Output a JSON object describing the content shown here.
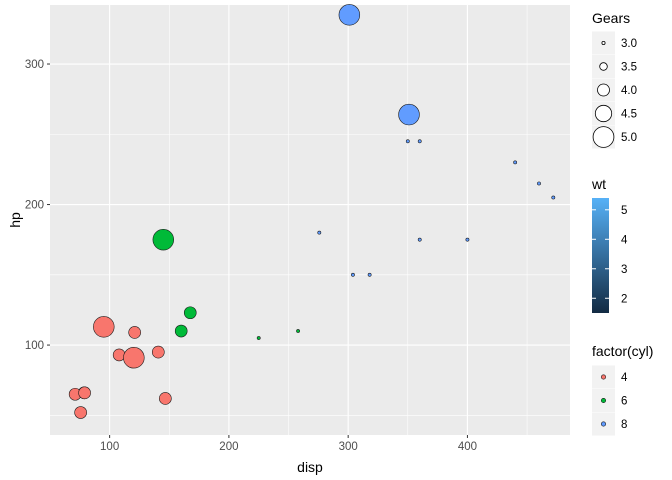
{
  "chart_data": {
    "type": "scatter",
    "xlabel": "disp",
    "ylabel": "hp",
    "xlim": [
      50,
      486
    ],
    "ylim": [
      36,
      342
    ],
    "x_ticks": [
      100,
      200,
      300,
      400
    ],
    "y_ticks": [
      100,
      200,
      300
    ],
    "x_tick_labels": [
      "100",
      "200",
      "300",
      "400"
    ],
    "y_tick_labels": [
      "100",
      "200",
      "300"
    ],
    "grid": true,
    "background": "#ebebeb",
    "size_variable": "Gears",
    "fill_variable": "factor(cyl)",
    "color_variable": "wt",
    "series": [
      {
        "name": "4",
        "color": "#f8766d",
        "points": [
          {
            "x": 108,
            "y": 93,
            "gear": 4
          },
          {
            "x": 146.7,
            "y": 62,
            "gear": 4
          },
          {
            "x": 140.8,
            "y": 95,
            "gear": 4
          },
          {
            "x": 78.7,
            "y": 66,
            "gear": 4
          },
          {
            "x": 75.7,
            "y": 52,
            "gear": 4
          },
          {
            "x": 71.1,
            "y": 65,
            "gear": 4
          },
          {
            "x": 120.1,
            "y": 97,
            "gear": 3
          },
          {
            "x": 79,
            "y": 66,
            "gear": 4
          },
          {
            "x": 120.3,
            "y": 91,
            "gear": 5
          },
          {
            "x": 95.1,
            "y": 113,
            "gear": 5
          },
          {
            "x": 121,
            "y": 109,
            "gear": 4
          }
        ]
      },
      {
        "name": "6",
        "color": "#00ba38",
        "points": [
          {
            "x": 160,
            "y": 110,
            "gear": 4
          },
          {
            "x": 258,
            "y": 110,
            "gear": 3
          },
          {
            "x": 225,
            "y": 105,
            "gear": 3
          },
          {
            "x": 167.6,
            "y": 123,
            "gear": 4
          },
          {
            "x": 145,
            "y": 175,
            "gear": 5
          }
        ]
      },
      {
        "name": "8",
        "color": "#619cff",
        "points": [
          {
            "x": 360,
            "y": 175,
            "gear": 3
          },
          {
            "x": 360,
            "y": 245,
            "gear": 3
          },
          {
            "x": 275.8,
            "y": 180,
            "gear": 3
          },
          {
            "x": 472,
            "y": 205,
            "gear": 3
          },
          {
            "x": 460,
            "y": 215,
            "gear": 3
          },
          {
            "x": 440,
            "y": 230,
            "gear": 3
          },
          {
            "x": 318,
            "y": 150,
            "gear": 3
          },
          {
            "x": 304,
            "y": 150,
            "gear": 3
          },
          {
            "x": 350,
            "y": 245,
            "gear": 3
          },
          {
            "x": 400,
            "y": 175,
            "gear": 3
          },
          {
            "x": 351,
            "y": 264,
            "gear": 5
          },
          {
            "x": 301,
            "y": 335,
            "gear": 5
          }
        ]
      }
    ],
    "legends": {
      "gears": {
        "title": "Gears",
        "values": [
          3.0,
          3.5,
          4.0,
          4.5,
          5.0
        ],
        "labels": [
          "3.0",
          "3.5",
          "4.0",
          "4.5",
          "5.0"
        ]
      },
      "wt": {
        "title": "wt",
        "range": [
          1.5,
          5.4
        ],
        "breaks": [
          2,
          3,
          4,
          5
        ],
        "labels": [
          "2",
          "3",
          "4",
          "5"
        ],
        "color_low": "#132b43",
        "color_high": "#56b1f7"
      },
      "cyl": {
        "title": "factor(cyl)",
        "labels": [
          "4",
          "6",
          "8"
        ],
        "colors": [
          "#f8766d",
          "#00ba38",
          "#619cff"
        ]
      }
    }
  }
}
